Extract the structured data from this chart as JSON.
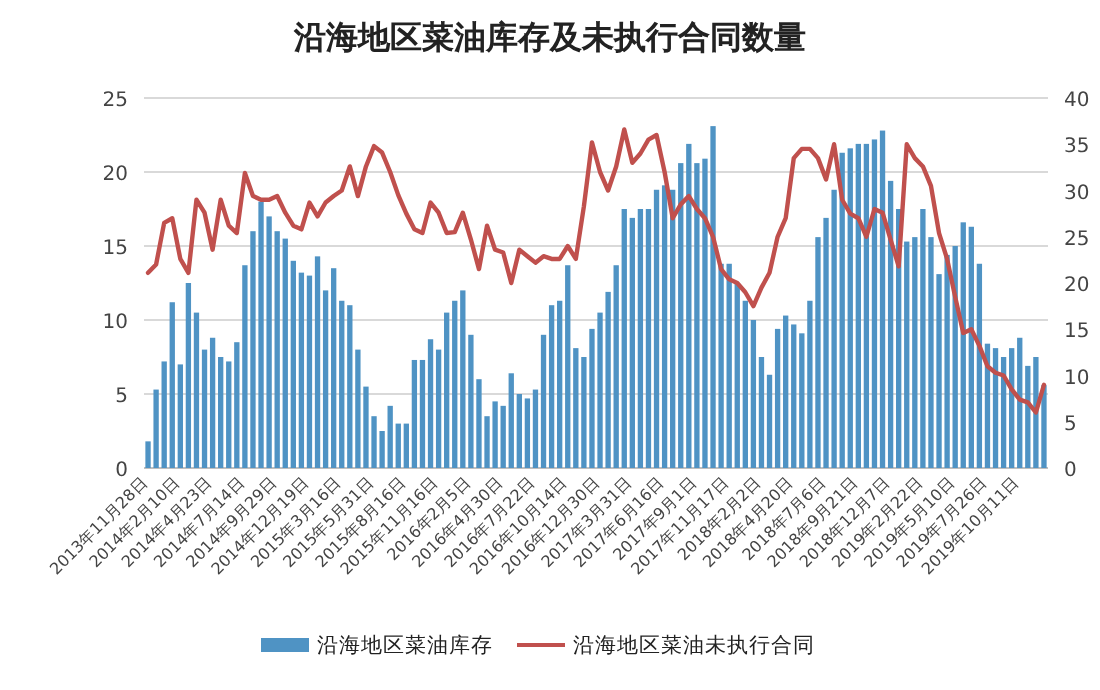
{
  "chart_data": {
    "type": "bar",
    "title": "沿海地区菜油库存及未执行合同数量",
    "categories": [
      "2013年11月28日",
      null,
      null,
      null,
      "2014年2月10日",
      null,
      null,
      null,
      "2014年4月23日",
      null,
      null,
      null,
      "2014年7月14日",
      null,
      null,
      null,
      "2014年9月29日",
      null,
      null,
      null,
      "2014年12月19日",
      null,
      null,
      null,
      "2015年3月16日",
      null,
      null,
      null,
      "2015年5月31日",
      null,
      null,
      null,
      "2015年8月16日",
      null,
      null,
      null,
      "2015年11月16日",
      null,
      null,
      null,
      "2016年2月5日",
      null,
      null,
      null,
      "2016年4月30日",
      null,
      null,
      null,
      "2016年7月22日",
      null,
      null,
      null,
      "2016年10月14日",
      null,
      null,
      null,
      "2016年12月30日",
      null,
      null,
      null,
      "2017年3月31日",
      null,
      null,
      null,
      "2017年6月16日",
      null,
      null,
      null,
      "2017年9月1日",
      null,
      null,
      null,
      "2017年11月17日",
      null,
      null,
      null,
      "2018年2月2日",
      null,
      null,
      null,
      "2018年4月20日",
      null,
      null,
      null,
      "2018年7月6日",
      null,
      null,
      null,
      "2018年9月21日",
      null,
      null,
      null,
      "2018年12月7日",
      null,
      null,
      null,
      "2019年2月22日",
      null,
      null,
      null,
      "2019年5月10日",
      null,
      null,
      null,
      "2019年7月26日",
      null,
      null,
      null,
      "2019年10月11日",
      null,
      null,
      null
    ],
    "series": [
      {
        "name": "沿海地区菜油库存",
        "color": "#4f93c4",
        "values": [
          1.8,
          5.3,
          7.2,
          11.2,
          7,
          12.5,
          10.5,
          8,
          8.8,
          7.5,
          7.2,
          8.5,
          13.7,
          16,
          18,
          17,
          16,
          15.5,
          14,
          13.2,
          13,
          14.3,
          12,
          13.5,
          11.3,
          11,
          8,
          5.5,
          3.5,
          2.5,
          4.2,
          3,
          3,
          7.3,
          7.3,
          8.7,
          8,
          10.5,
          11.3,
          12,
          9,
          6,
          3.5,
          4.5,
          4.2,
          6.4,
          5,
          4.7,
          5.3,
          9,
          11,
          11.3,
          13.7,
          8.1,
          7.5,
          9.4,
          10.5,
          11.9,
          13.7,
          17.5,
          16.9,
          17.5,
          17.5,
          18.8,
          19.1,
          18.8,
          20.6,
          21.9,
          20.6,
          20.9,
          23.1,
          13.8,
          13.8,
          12.5,
          11.3,
          10,
          7.5,
          6.3,
          9.4,
          10.3,
          9.7,
          9.1,
          11.3,
          15.6,
          16.9,
          18.8,
          21.3,
          21.6,
          21.9,
          21.9,
          22.2,
          22.8,
          19.4,
          17.5,
          15.3,
          15.6,
          17.5,
          15.6,
          13.1,
          14.4,
          15,
          16.6,
          16.3,
          13.8,
          8.4,
          8.1,
          7.5,
          8.1,
          8.8,
          6.9,
          7.5,
          5.6
        ]
      },
      {
        "name": "沿海地区菜油未执行合同",
        "type": "line",
        "axis": "y2",
        "color": "#c0504d",
        "values": [
          21.1,
          22,
          26.5,
          27,
          22.6,
          21.1,
          29,
          27.6,
          23.6,
          29,
          26.2,
          25.4,
          31.9,
          29.4,
          29,
          29,
          29.4,
          27.6,
          26.2,
          25.8,
          28.7,
          27.2,
          28.7,
          29.4,
          30,
          32.6,
          29.4,
          32.6,
          34.8,
          34.1,
          32,
          29.5,
          27.5,
          25.8,
          25.4,
          28.7,
          27.6,
          25.4,
          25.5,
          27.6,
          24.7,
          21.5,
          26.2,
          23.6,
          23.3,
          20,
          23.6,
          22.9,
          22.2,
          22.9,
          22.6,
          22.6,
          24,
          22.6,
          28.3,
          35.2,
          32,
          30,
          32.6,
          36.6,
          33,
          34,
          35.5,
          36,
          32,
          27,
          28.5,
          29.4,
          28,
          27,
          25,
          21.5,
          20.4,
          20,
          19,
          17.5,
          19.5,
          21.1,
          25,
          27,
          33.5,
          34.5,
          34.5,
          33.5,
          31.2,
          35,
          29,
          27.5,
          27,
          25,
          28,
          27.6,
          24.7,
          21.8,
          35,
          33.5,
          32.6,
          30.5,
          25.4,
          22.6,
          18.5,
          14.6,
          15,
          13.2,
          11,
          10.3,
          10,
          8.5,
          7.4,
          7.1,
          6,
          9
        ]
      }
    ],
    "ylim": [
      0,
      25
    ],
    "yticks": [
      0,
      5,
      10,
      15,
      20,
      25
    ],
    "y2lim": [
      0,
      40
    ],
    "y2ticks": [
      0,
      5,
      10,
      15,
      20,
      25,
      30,
      35,
      40
    ],
    "grid": "y",
    "legend": "bottom"
  }
}
